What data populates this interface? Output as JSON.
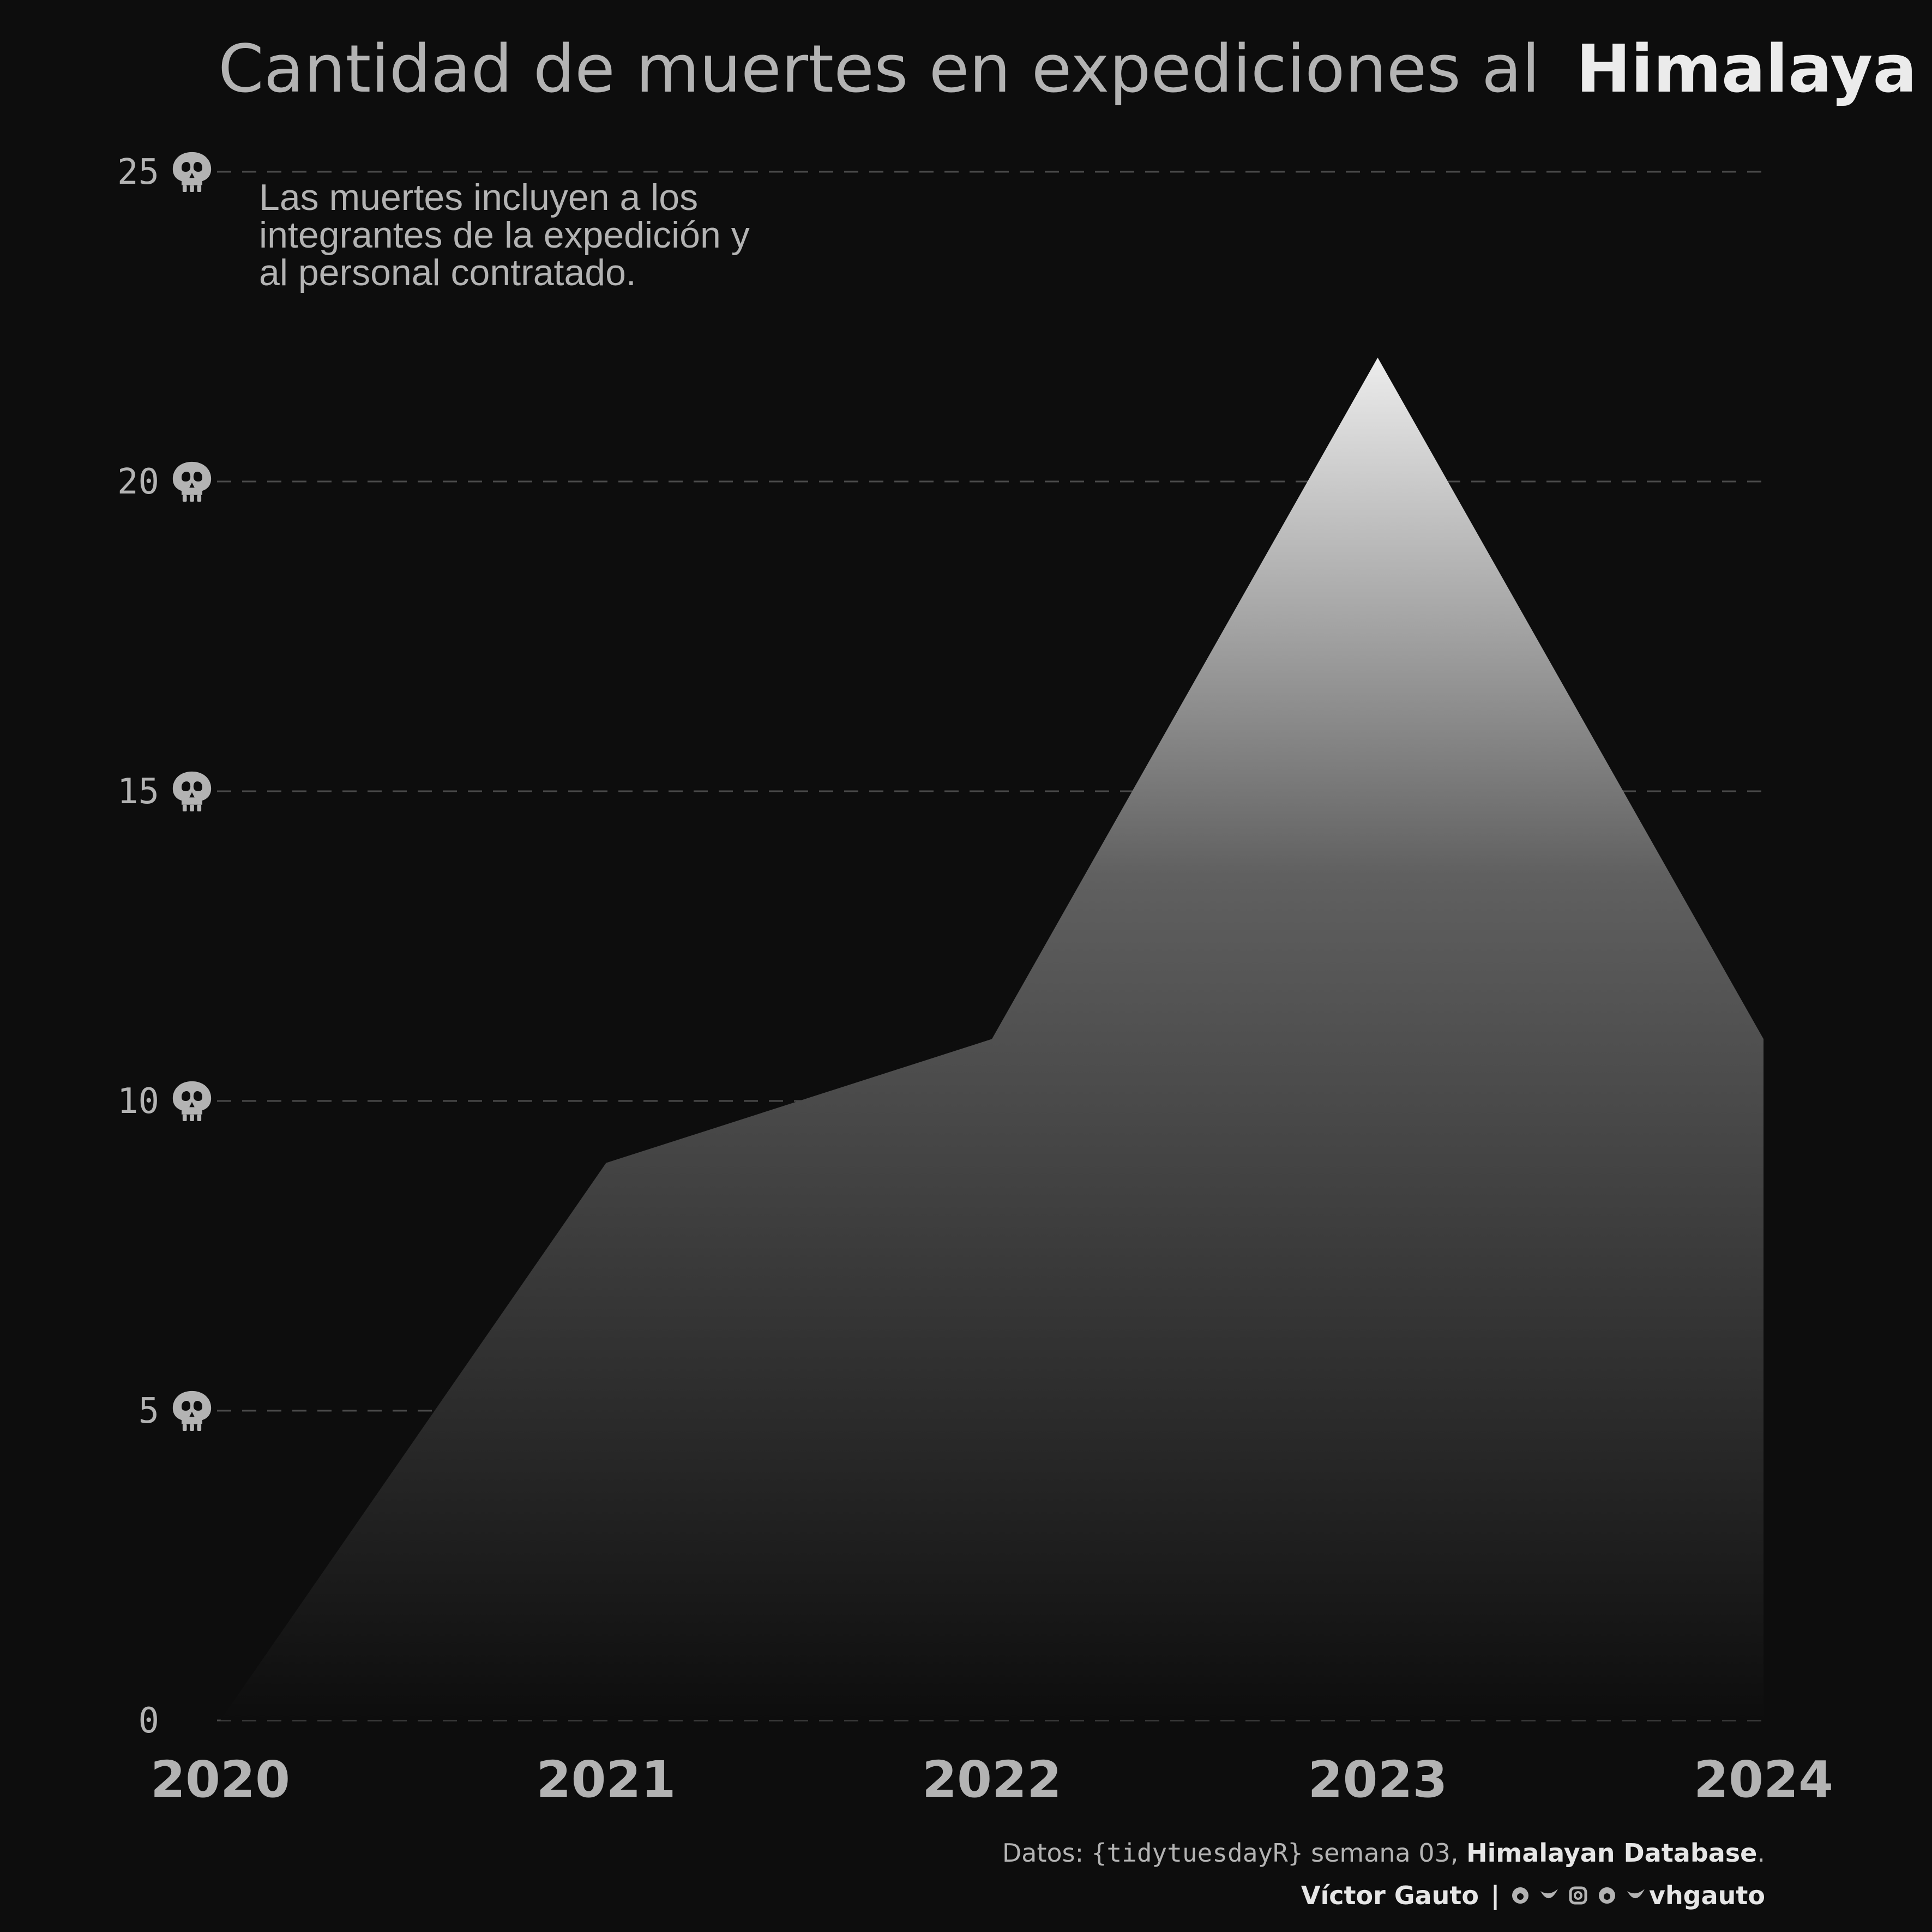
{
  "title": {
    "regular": "Cantidad de muertes en expediciones al",
    "bold": "Himalaya"
  },
  "note": {
    "lines": [
      "Las muertes incluyen a los",
      "integrantes de la expedición y",
      "al personal contratado."
    ]
  },
  "chart_data": {
    "type": "area",
    "x": [
      2020,
      2021,
      2022,
      2023,
      2024
    ],
    "values": [
      0,
      9,
      11,
      22,
      11
    ],
    "x_tick_labels": [
      "2020",
      "2021",
      "2022",
      "2023",
      "2024"
    ],
    "y_ticks": [
      0,
      5,
      10,
      15,
      20,
      25
    ],
    "y_tick_labels": [
      "0",
      "5",
      "10",
      "15",
      "20",
      "25"
    ],
    "ylim": [
      0,
      25
    ],
    "grid": "horizontal dashed",
    "y_tick_icon": "skull-icon",
    "fill": "vertical gradient, light gray at peak to near-black at baseline",
    "xlabel": "",
    "ylabel": ""
  },
  "caption": {
    "line1": {
      "prefix": "Datos: ",
      "package": "{tidytuesdayR}",
      "middle": " semana 03, ",
      "source": "Himalayan Database",
      "suffix": "."
    },
    "line2": {
      "author": "Víctor Gauto",
      "separator": "|",
      "handle": "vhgauto",
      "icons": [
        "github-icon",
        "twitter-icon",
        "instagram-icon",
        "mastodon-icon",
        "bluesky-icon"
      ]
    }
  },
  "colors": {
    "background": "#0d0d0d",
    "text": "#b3b3b3",
    "text_bright": "#ebebeb",
    "grid": "#4a4a4a",
    "gradient_top": "#ececec",
    "gradient_mid": "#606060",
    "gradient_bottom": "#0d0d0d"
  }
}
